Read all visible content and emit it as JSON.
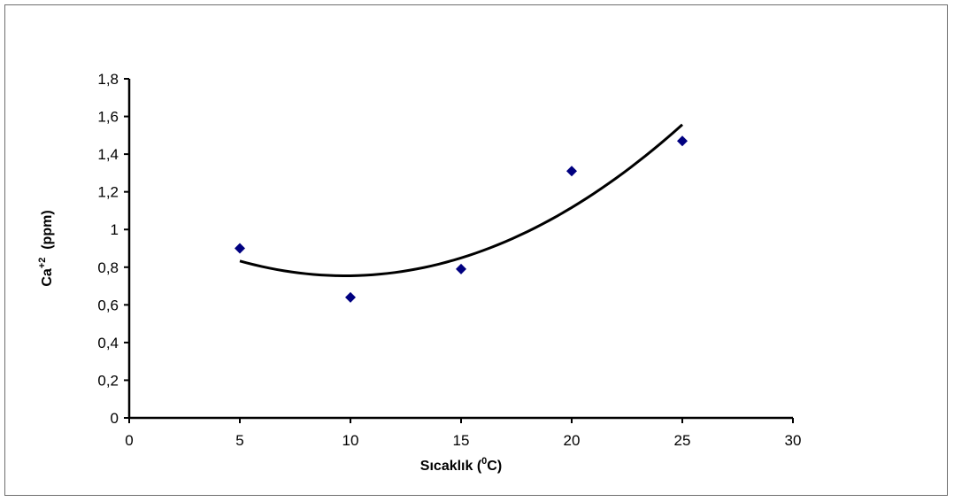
{
  "chart_data": {
    "type": "scatter",
    "title": "",
    "xlabel": {
      "prefix": "Sıcaklık (",
      "sup": "0",
      "suffix": "C)"
    },
    "ylabel": {
      "prefix": "Ca",
      "sup": "+2",
      "suffix": "  (ppm)"
    },
    "xlim": [
      0,
      30
    ],
    "ylim": [
      0,
      1.8
    ],
    "x_ticks": [
      0,
      5,
      10,
      15,
      20,
      25,
      30
    ],
    "x_tick_labels": [
      "0",
      "5",
      "10",
      "15",
      "20",
      "25",
      "30"
    ],
    "y_ticks": [
      0,
      0.2,
      0.4,
      0.6,
      0.8,
      1.0,
      1.2,
      1.4,
      1.6,
      1.8
    ],
    "y_tick_labels": [
      "0",
      "0,2",
      "0,4",
      "0,6",
      "0,8",
      "1",
      "1,2",
      "1,4",
      "1,6",
      "1,8"
    ],
    "grid": false,
    "series": [
      {
        "marker": "diamond",
        "color": "#000080",
        "x": [
          5,
          10,
          15,
          20,
          25
        ],
        "y": [
          0.9,
          0.64,
          0.79,
          1.31,
          1.47
        ]
      }
    ],
    "trendline": {
      "type": "polynomial",
      "order": 2,
      "color": "#000000",
      "x_range": [
        5,
        25
      ]
    }
  }
}
